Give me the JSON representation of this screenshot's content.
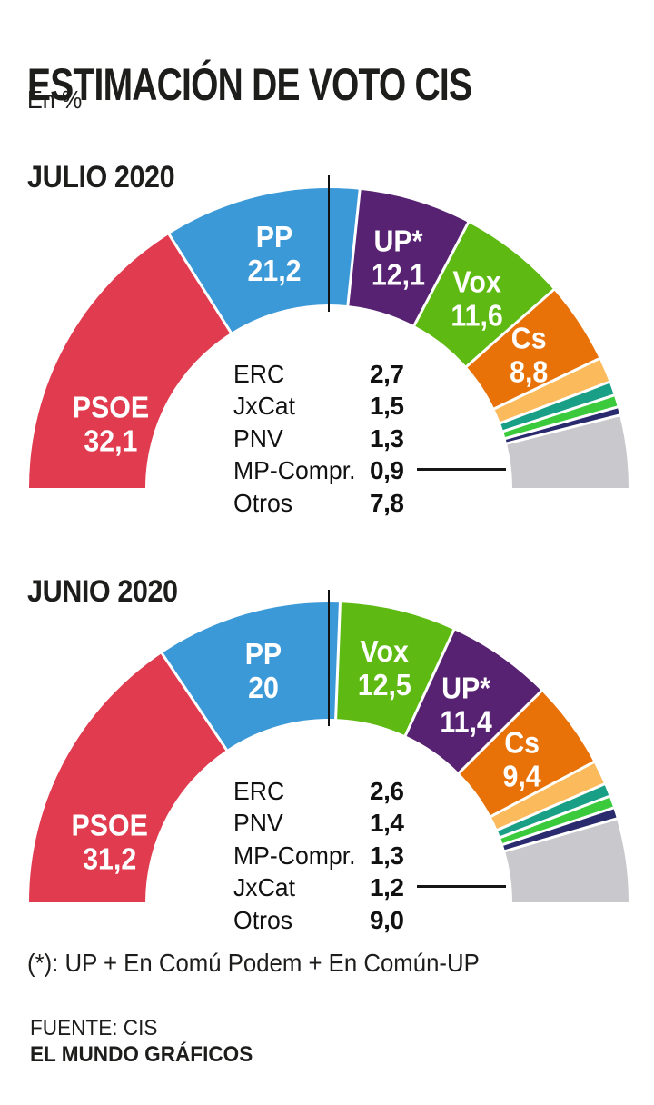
{
  "header": {
    "title": "ESTIMACIÓN DE VOTO CIS",
    "subtitle": "En %"
  },
  "footnote": {
    "text": "(*): UP + En Comú Podem + En Común-UP"
  },
  "source": {
    "label": "FUENTE: CIS",
    "credit": "EL MUNDO GRÁFICOS"
  },
  "colors": {
    "psoe_red": "#e03b4e",
    "pp_blue": "#3b99d8",
    "up_purple": "#572271",
    "vox_green": "#5eba12",
    "cs_orange": "#e87208",
    "amber": "#fbba5c",
    "teal": "#189f86",
    "bright_green": "#3aca3c",
    "navy": "#2a2b6e",
    "others_gray": "#c9c9cd",
    "marker_black": "#111111",
    "text_dark": "#1d1d1b"
  },
  "chart_data": [
    {
      "type": "pie",
      "subtype": "half-donut",
      "title": "JULIO 2020",
      "unit": "%",
      "legend_position": "center-of-donut",
      "slices": [
        {
          "label": "PSOE",
          "value": 32.1,
          "display": "32,1",
          "color": "#e03b4e",
          "in_slice_label": true,
          "label_frac": 0.28,
          "label_radius": 250
        },
        {
          "label": "PP",
          "value": 21.2,
          "display": "21,2",
          "color": "#3b99d8",
          "in_slice_label": true
        },
        {
          "label": "UP*",
          "value": 12.1,
          "display": "12,1",
          "color": "#572271",
          "in_slice_label": true
        },
        {
          "label": "Vox",
          "value": 11.6,
          "display": "11,6",
          "color": "#5eba12",
          "in_slice_label": true
        },
        {
          "label": "Cs",
          "value": 8.8,
          "display": "8,8",
          "color": "#e87208",
          "in_slice_label": true
        },
        {
          "label": "ERC",
          "value": 2.7,
          "display": "2,7",
          "color": "#fbba5c"
        },
        {
          "label": "JxCat",
          "value": 1.5,
          "display": "1,5",
          "color": "#189f86"
        },
        {
          "label": "PNV",
          "value": 1.3,
          "display": "1,3",
          "color": "#3aca3c"
        },
        {
          "label": "MP-Compr.",
          "value": 0.9,
          "display": "0,9",
          "color": "#2a2b6e",
          "callout": true
        },
        {
          "label": "Otros",
          "value": 7.8,
          "display": "7,8",
          "color": "#c9c9cd"
        }
      ]
    },
    {
      "type": "pie",
      "subtype": "half-donut",
      "title": "JUNIO 2020",
      "unit": "%",
      "legend_position": "center-of-donut",
      "slices": [
        {
          "label": "PSOE",
          "value": 31.2,
          "display": "31,2",
          "color": "#e03b4e",
          "in_slice_label": true,
          "label_frac": 0.27,
          "label_radius": 250
        },
        {
          "label": "PP",
          "value": 20,
          "display": "20",
          "color": "#3b99d8",
          "in_slice_label": true
        },
        {
          "label": "Vox",
          "value": 12.5,
          "display": "12,5",
          "color": "#5eba12",
          "in_slice_label": true
        },
        {
          "label": "UP*",
          "value": 11.4,
          "display": "11,4",
          "color": "#572271",
          "in_slice_label": true
        },
        {
          "label": "Cs",
          "value": 9.4,
          "display": "9,4",
          "color": "#e87208",
          "in_slice_label": true
        },
        {
          "label": "ERC",
          "value": 2.6,
          "display": "2,6",
          "color": "#fbba5c"
        },
        {
          "label": "PNV",
          "value": 1.4,
          "display": "1,4",
          "color": "#189f86"
        },
        {
          "label": "MP-Compr.",
          "value": 1.3,
          "display": "1,3",
          "color": "#3aca3c"
        },
        {
          "label": "JxCat",
          "value": 1.2,
          "display": "1,2",
          "color": "#2a2b6e",
          "callout": true
        },
        {
          "label": "Otros",
          "value": 9.0,
          "display": "9,0",
          "color": "#c9c9cd"
        }
      ]
    }
  ]
}
